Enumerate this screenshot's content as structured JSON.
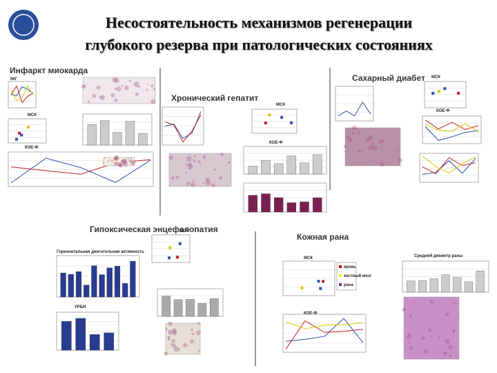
{
  "header": {
    "title_lines": [
      "Несостоятельность механизмов регенерации",
      "глубокого резерва при патологических состояниях"
    ]
  },
  "panels": [
    {
      "title": "Инфаркт миокарда",
      "labels": [
        "ЭКГ",
        "МСК",
        "КОЕ-Ф"
      ]
    },
    {
      "title": "Хронический гепатит",
      "labels": [
        "МСК",
        "КОЕ-Ф"
      ]
    },
    {
      "title": "Сахарный диабет",
      "labels": [
        "МСК",
        "КОЕ-Ф"
      ]
    },
    {
      "title": "Гипоксическая энцефалопатия",
      "labels": [
        "МСК",
        "УРБН",
        "Горизонтальная двигательная активность"
      ]
    },
    {
      "title": "Кожная рана",
      "labels": [
        "МСК",
        "КОЕ-Ф",
        "Средний диаметр раны"
      ],
      "legend": [
        "кровь",
        "костный мозг",
        "рана"
      ]
    }
  ]
}
